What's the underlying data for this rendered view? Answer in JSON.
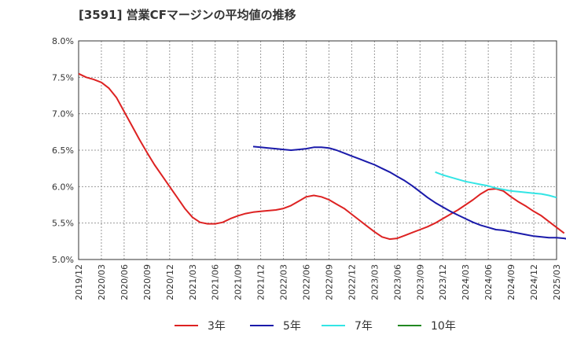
{
  "chart_data": {
    "type": "line",
    "title": "[3591]  営業CFマージンの平均値の推移",
    "xlabel": "",
    "ylabel": "",
    "ylim": [
      5.0,
      8.0
    ],
    "y_ticks": [
      "8.0%",
      "7.5%",
      "7.0%",
      "6.5%",
      "6.0%",
      "5.5%",
      "5.0%"
    ],
    "x_ticks": [
      "2019/12",
      "2020/03",
      "2020/06",
      "2020/09",
      "2020/12",
      "2021/03",
      "2021/06",
      "2021/09",
      "2021/12",
      "2022/03",
      "2022/06",
      "2022/09",
      "2022/12",
      "2023/03",
      "2023/06",
      "2023/09",
      "2023/12",
      "2024/03",
      "2024/06",
      "2024/09",
      "2024/12",
      "2025/03"
    ],
    "grid": true,
    "legend_position": "bottom",
    "series": [
      {
        "name": "3年",
        "color": "#dd2222",
        "start": "2019/12",
        "values": [
          7.55,
          7.5,
          7.47,
          7.43,
          7.35,
          7.22,
          7.03,
          6.84,
          6.65,
          6.47,
          6.3,
          6.15,
          6.0,
          5.85,
          5.7,
          5.58,
          5.51,
          5.49,
          5.49,
          5.51,
          5.56,
          5.6,
          5.63,
          5.65,
          5.66,
          5.67,
          5.68,
          5.7,
          5.74,
          5.8,
          5.86,
          5.88,
          5.86,
          5.82,
          5.76,
          5.7,
          5.62,
          5.54,
          5.46,
          5.38,
          5.31,
          5.28,
          5.29,
          5.33,
          5.37,
          5.41,
          5.45,
          5.5,
          5.56,
          5.62,
          5.68,
          5.75,
          5.82,
          5.9,
          5.96,
          5.97,
          5.94,
          5.86,
          5.79,
          5.73,
          5.66,
          5.6,
          5.52,
          5.44,
          5.36
        ]
      },
      {
        "name": "5年",
        "color": "#1a1aaa",
        "start": "2021/11",
        "values": [
          6.55,
          6.54,
          6.53,
          6.52,
          6.51,
          6.5,
          6.51,
          6.52,
          6.54,
          6.54,
          6.53,
          6.5,
          6.46,
          6.42,
          6.38,
          6.34,
          6.3,
          6.25,
          6.2,
          6.14,
          6.08,
          6.01,
          5.93,
          5.85,
          5.78,
          5.72,
          5.66,
          5.61,
          5.56,
          5.51,
          5.47,
          5.44,
          5.41,
          5.4,
          5.38,
          5.36,
          5.34,
          5.32,
          5.31,
          5.3,
          5.3,
          5.29,
          5.27,
          5.25,
          5.22
        ]
      },
      {
        "name": "7年",
        "color": "#33e5e5",
        "start": "2023/11",
        "values": [
          6.2,
          6.16,
          6.13,
          6.1,
          6.07,
          6.05,
          6.03,
          6.01,
          5.98,
          5.96,
          5.94,
          5.93,
          5.92,
          5.91,
          5.9,
          5.88,
          5.85
        ]
      },
      {
        "name": "10年",
        "color": "#228822",
        "start": "2024/12",
        "values": []
      }
    ]
  }
}
